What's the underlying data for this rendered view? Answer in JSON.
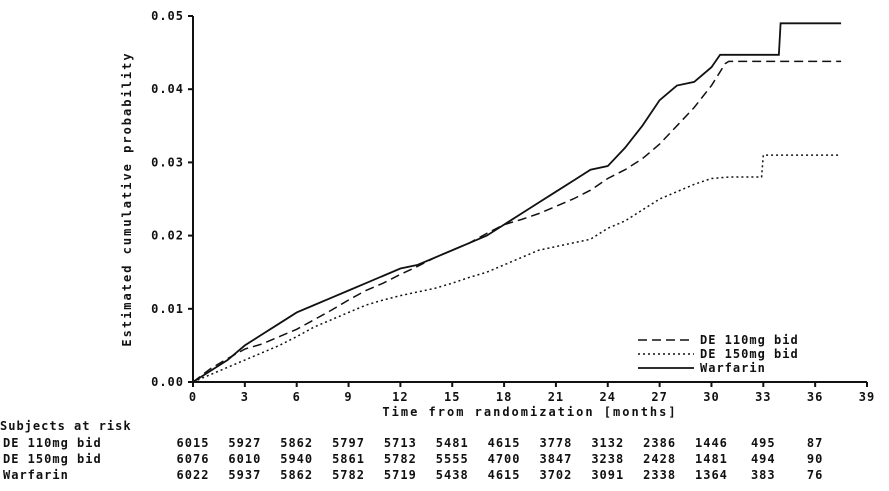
{
  "chart_data": {
    "type": "line",
    "title": "",
    "xlabel": "Time from randomization [months]",
    "ylabel": "Estimated cumulative probability",
    "xlim": [
      0,
      39
    ],
    "ylim": [
      0,
      0.05
    ],
    "xticks": [
      0,
      3,
      6,
      9,
      12,
      15,
      18,
      21,
      24,
      27,
      30,
      33,
      36,
      39
    ],
    "yticks": [
      0.0,
      0.01,
      0.02,
      0.03,
      0.04,
      0.05
    ],
    "grid": false,
    "legend_position": "bottom-right-inside",
    "series": [
      {
        "name": "DE 110mg bid",
        "style": "dashed",
        "points": [
          [
            0,
            0
          ],
          [
            1,
            0.0018
          ],
          [
            2,
            0.0032
          ],
          [
            3,
            0.0045
          ],
          [
            4,
            0.0052
          ],
          [
            5,
            0.0062
          ],
          [
            6,
            0.0072
          ],
          [
            7,
            0.0085
          ],
          [
            8,
            0.0098
          ],
          [
            9,
            0.0112
          ],
          [
            10,
            0.0125
          ],
          [
            11,
            0.0135
          ],
          [
            12,
            0.0147
          ],
          [
            13,
            0.0158
          ],
          [
            14,
            0.017
          ],
          [
            15,
            0.018
          ],
          [
            16,
            0.019
          ],
          [
            17,
            0.0203
          ],
          [
            18,
            0.0215
          ],
          [
            19,
            0.0222
          ],
          [
            20,
            0.023
          ],
          [
            21,
            0.024
          ],
          [
            22,
            0.025
          ],
          [
            23,
            0.0262
          ],
          [
            24,
            0.0278
          ],
          [
            25,
            0.029
          ],
          [
            26,
            0.0305
          ],
          [
            27,
            0.0325
          ],
          [
            28,
            0.035
          ],
          [
            29,
            0.0375
          ],
          [
            30,
            0.0405
          ],
          [
            30.8,
            0.0435
          ],
          [
            31,
            0.0438
          ],
          [
            37.5,
            0.0438
          ]
        ]
      },
      {
        "name": "DE 150mg bid",
        "style": "dotted",
        "points": [
          [
            0,
            0
          ],
          [
            1,
            0.001
          ],
          [
            2,
            0.002
          ],
          [
            3,
            0.003
          ],
          [
            4,
            0.004
          ],
          [
            5,
            0.005
          ],
          [
            6,
            0.0062
          ],
          [
            7,
            0.0075
          ],
          [
            8,
            0.0085
          ],
          [
            9,
            0.0095
          ],
          [
            10,
            0.0105
          ],
          [
            11,
            0.0112
          ],
          [
            12,
            0.0118
          ],
          [
            13,
            0.0123
          ],
          [
            14,
            0.0128
          ],
          [
            15,
            0.0135
          ],
          [
            16,
            0.0143
          ],
          [
            17,
            0.015
          ],
          [
            18,
            0.016
          ],
          [
            19,
            0.017
          ],
          [
            20,
            0.018
          ],
          [
            21,
            0.0185
          ],
          [
            22,
            0.019
          ],
          [
            23,
            0.0195
          ],
          [
            24,
            0.021
          ],
          [
            25,
            0.022
          ],
          [
            26,
            0.0235
          ],
          [
            27,
            0.025
          ],
          [
            28,
            0.026
          ],
          [
            29,
            0.027
          ],
          [
            30,
            0.0278
          ],
          [
            31,
            0.028
          ],
          [
            32.9,
            0.028
          ],
          [
            33,
            0.031
          ],
          [
            37.5,
            0.031
          ]
        ]
      },
      {
        "name": "Warfarin",
        "style": "solid",
        "points": [
          [
            0,
            0
          ],
          [
            1,
            0.0015
          ],
          [
            2,
            0.003
          ],
          [
            3,
            0.005
          ],
          [
            4,
            0.0065
          ],
          [
            5,
            0.008
          ],
          [
            6,
            0.0095
          ],
          [
            7,
            0.0105
          ],
          [
            8,
            0.0115
          ],
          [
            9,
            0.0125
          ],
          [
            10,
            0.0135
          ],
          [
            11,
            0.0145
          ],
          [
            12,
            0.0155
          ],
          [
            13,
            0.016
          ],
          [
            14,
            0.017
          ],
          [
            15,
            0.018
          ],
          [
            16,
            0.019
          ],
          [
            17,
            0.02
          ],
          [
            18,
            0.0215
          ],
          [
            19,
            0.023
          ],
          [
            20,
            0.0245
          ],
          [
            21,
            0.026
          ],
          [
            22,
            0.0275
          ],
          [
            23,
            0.029
          ],
          [
            24,
            0.0295
          ],
          [
            25,
            0.032
          ],
          [
            26,
            0.035
          ],
          [
            27,
            0.0385
          ],
          [
            28,
            0.0405
          ],
          [
            29,
            0.041
          ],
          [
            30,
            0.043
          ],
          [
            30.5,
            0.0447
          ],
          [
            33.9,
            0.0447
          ],
          [
            34,
            0.049
          ],
          [
            37.5,
            0.049
          ]
        ]
      }
    ]
  },
  "at_risk": {
    "header": "Subjects at risk",
    "months": [
      0,
      3,
      6,
      9,
      12,
      15,
      18,
      21,
      24,
      27,
      30,
      33,
      36
    ],
    "rows": [
      {
        "label": "DE 110mg bid",
        "values": [
          6015,
          5927,
          5862,
          5797,
          5713,
          5481,
          4615,
          3778,
          3132,
          2386,
          1446,
          495,
          87
        ]
      },
      {
        "label": "DE 150mg bid",
        "values": [
          6076,
          6010,
          5940,
          5861,
          5782,
          5555,
          4700,
          3847,
          3238,
          2428,
          1481,
          494,
          90
        ]
      },
      {
        "label": "Warfarin",
        "values": [
          6022,
          5937,
          5862,
          5782,
          5719,
          5438,
          4615,
          3702,
          3091,
          2338,
          1364,
          383,
          76
        ]
      }
    ]
  },
  "colors": {
    "ink": "#111111",
    "bg": "#ffffff"
  }
}
